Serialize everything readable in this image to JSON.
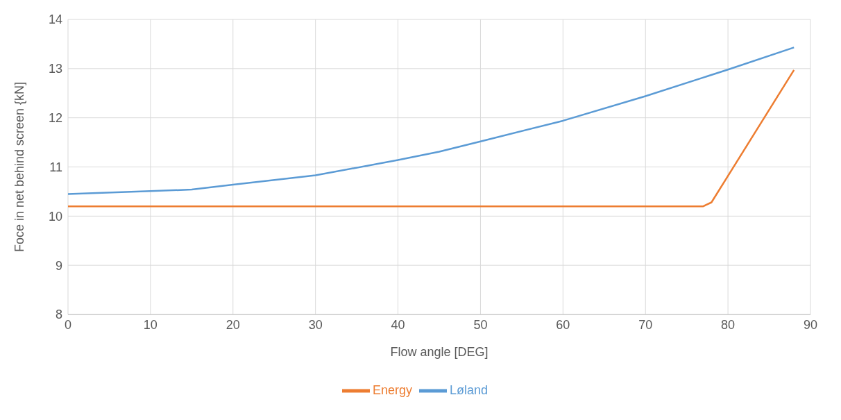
{
  "chart_data": {
    "type": "line",
    "xlabel": "Flow angle [DEG]",
    "ylabel": "Foce in net behind screen {kN]",
    "xlim": [
      0,
      90
    ],
    "xticks": [
      0,
      10,
      20,
      30,
      40,
      50,
      60,
      70,
      80,
      90
    ],
    "ylim": [
      8,
      14
    ],
    "yticks": [
      8,
      9,
      10,
      11,
      12,
      13,
      14
    ],
    "grid": true,
    "legend": "bottom",
    "marker": "none",
    "line_style": "solid",
    "series": [
      {
        "name": "Løland",
        "color": "#5b9bd5",
        "x": [
          0,
          10,
          15,
          20,
          30,
          40,
          45,
          50,
          60,
          70,
          80,
          88
        ],
        "values": [
          10.45,
          10.51,
          10.54,
          10.64,
          10.83,
          11.14,
          11.31,
          11.52,
          11.94,
          12.44,
          12.98,
          13.43
        ]
      },
      {
        "name": "Energy",
        "color": "#ed7d31",
        "x": [
          0,
          77,
          78,
          88
        ],
        "values": [
          10.2,
          10.2,
          10.28,
          12.97
        ]
      }
    ]
  }
}
